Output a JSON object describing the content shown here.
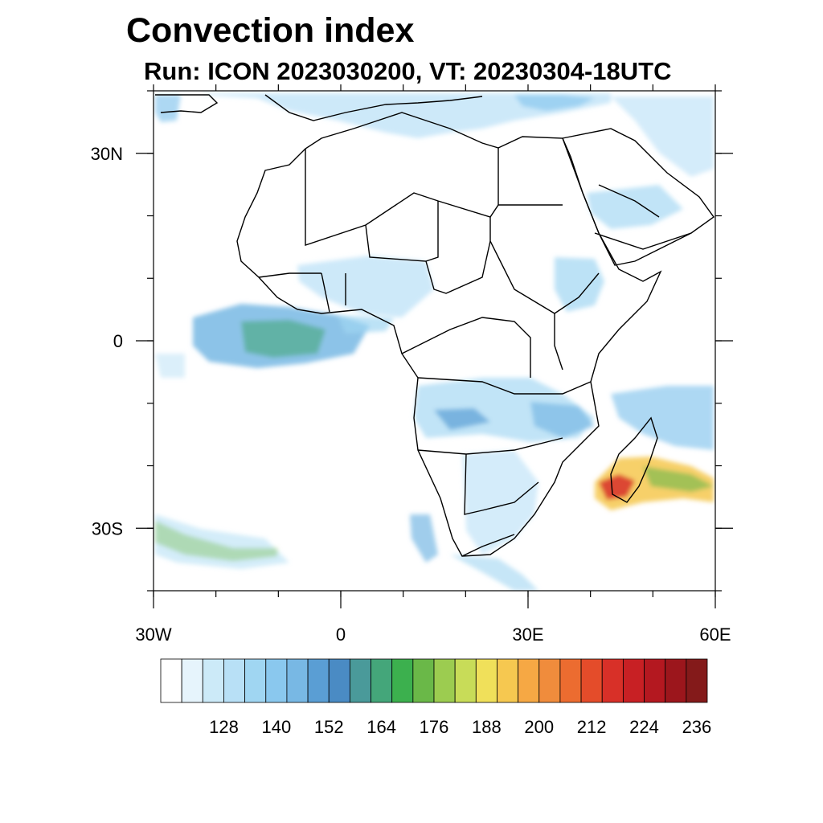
{
  "title": "Convection index",
  "subtitle": "Run: ICON 2023030200,  VT: 20230304-18UTC",
  "axes": {
    "lon_ticks": [
      {
        "value": -30,
        "label": "30W"
      },
      {
        "value": 0,
        "label": "0"
      },
      {
        "value": 30,
        "label": "30E"
      },
      {
        "value": 60,
        "label": "60E"
      }
    ],
    "lat_ticks": [
      {
        "value": 30,
        "label": "30N"
      },
      {
        "value": 0,
        "label": "0"
      },
      {
        "value": -30,
        "label": "30S"
      }
    ],
    "lon_range": [
      -30,
      60
    ],
    "lat_range": [
      -40,
      40
    ]
  },
  "colorbar": {
    "colors": [
      "#ffffff",
      "#e6f4fc",
      "#cceaf8",
      "#b8e0f6",
      "#a0d6f2",
      "#8ac8ee",
      "#78b8e4",
      "#5a9ed4",
      "#4a8bc4",
      "#4a9a9a",
      "#44a67a",
      "#3cb04e",
      "#6ab848",
      "#9ccc50",
      "#c8dc58",
      "#f0e05a",
      "#f6c850",
      "#f6a844",
      "#f08c3c",
      "#ec6c30",
      "#e44c2a",
      "#d83028",
      "#c82024",
      "#b41820",
      "#9c161c",
      "#841a1a"
    ],
    "labels": [
      "128",
      "140",
      "152",
      "164",
      "176",
      "188",
      "200",
      "212",
      "224",
      "236"
    ]
  }
}
